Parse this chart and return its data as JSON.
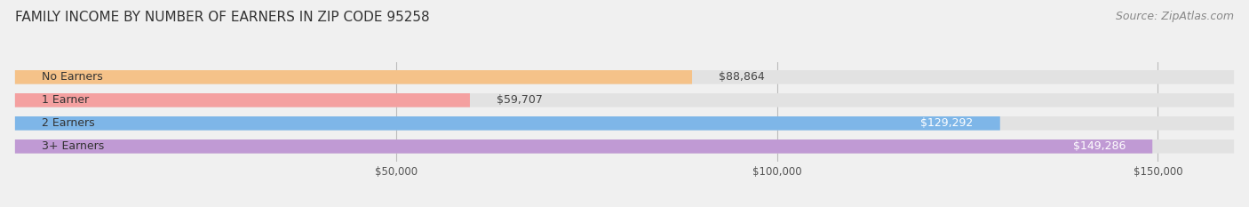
{
  "title": "FAMILY INCOME BY NUMBER OF EARNERS IN ZIP CODE 95258",
  "source": "Source: ZipAtlas.com",
  "categories": [
    "No Earners",
    "1 Earner",
    "2 Earners",
    "3+ Earners"
  ],
  "values": [
    88864,
    59707,
    129292,
    149286
  ],
  "bar_colors": [
    "#F5C289",
    "#F4A0A0",
    "#7EB6E8",
    "#C09AD4"
  ],
  "label_colors": [
    "#333333",
    "#333333",
    "#ffffff",
    "#ffffff"
  ],
  "xmin": 0,
  "xmax": 160000,
  "xticks": [
    50000,
    100000,
    150000
  ],
  "xtick_labels": [
    "$50,000",
    "$100,000",
    "$150,000"
  ],
  "background_color": "#f0f0f0",
  "bar_bg_color": "#e2e2e2",
  "title_fontsize": 11,
  "source_fontsize": 9,
  "label_fontsize": 9,
  "value_fontsize": 9
}
